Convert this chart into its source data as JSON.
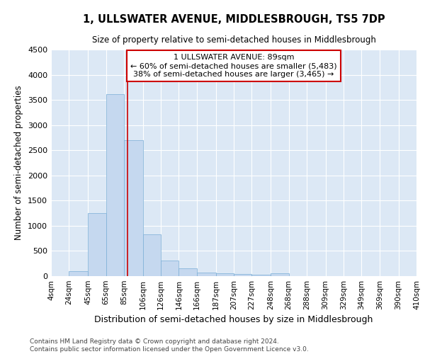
{
  "title": "1, ULLSWATER AVENUE, MIDDLESBROUGH, TS5 7DP",
  "subtitle": "Size of property relative to semi-detached houses in Middlesbrough",
  "xlabel": "Distribution of semi-detached houses by size in Middlesbrough",
  "ylabel": "Number of semi-detached properties",
  "footer_line1": "Contains HM Land Registry data © Crown copyright and database right 2024.",
  "footer_line2": "Contains public sector information licensed under the Open Government Licence v3.0.",
  "bin_labels": [
    "4sqm",
    "24sqm",
    "45sqm",
    "65sqm",
    "85sqm",
    "106sqm",
    "126sqm",
    "146sqm",
    "166sqm",
    "187sqm",
    "207sqm",
    "227sqm",
    "248sqm",
    "268sqm",
    "288sqm",
    "309sqm",
    "329sqm",
    "349sqm",
    "369sqm",
    "390sqm",
    "410sqm"
  ],
  "bin_edges": [
    4,
    24,
    45,
    65,
    85,
    106,
    126,
    146,
    166,
    187,
    207,
    227,
    248,
    268,
    288,
    309,
    329,
    349,
    369,
    390,
    410
  ],
  "bar_heights": [
    0,
    100,
    1250,
    3620,
    2700,
    830,
    315,
    160,
    75,
    55,
    40,
    35,
    55,
    0,
    0,
    0,
    0,
    0,
    0,
    0
  ],
  "bar_color": "#c5d8ef",
  "bar_edge_color": "#7aaed6",
  "bg_color": "#dce8f5",
  "grid_color": "#ffffff",
  "property_line_x": 89,
  "property_line_color": "#cc0000",
  "annotation_line1": "1 ULLSWATER AVENUE: 89sqm",
  "annotation_line2": "← 60% of semi-detached houses are smaller (5,483)",
  "annotation_line3": "38% of semi-detached houses are larger (3,465) →",
  "annotation_box_color": "#cc0000",
  "ylim": [
    0,
    4500
  ],
  "yticks": [
    0,
    500,
    1000,
    1500,
    2000,
    2500,
    3000,
    3500,
    4000,
    4500
  ]
}
